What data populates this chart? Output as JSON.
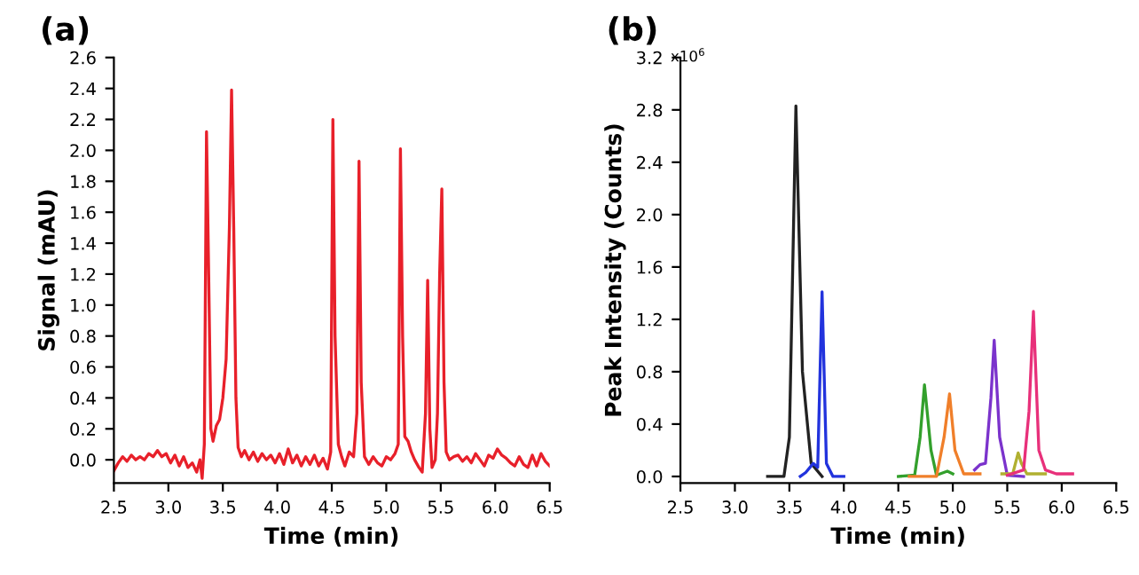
{
  "chart_data": [
    {
      "type": "line",
      "title": "(a)",
      "xlabel": "Time (min)",
      "ylabel": "Signal (mAU)",
      "xlim": [
        2.5,
        6.5
      ],
      "ylim": [
        -0.15,
        2.6
      ],
      "xticks": [
        2.5,
        {
          "value": 3,
          "label": "3.0"
        },
        3.5,
        {
          "value": 4,
          "label": "4.0"
        },
        4.5,
        {
          "value": 5,
          "label": "5.0"
        },
        5.5,
        {
          "value": 6,
          "label": "6.0"
        },
        6.5
      ],
      "yticks": [
        {
          "value": 0,
          "label": "0.0"
        },
        0.2,
        0.4,
        0.6,
        0.8,
        {
          "value": 1,
          "label": "1.0"
        },
        1.2,
        1.4,
        1.6,
        1.8,
        {
          "value": 2,
          "label": "2.0"
        },
        2.2,
        2.4,
        2.6
      ],
      "grid": false,
      "legend": false,
      "marker": "none",
      "line_style": "solid",
      "series": [
        {
          "color": "#e8202a",
          "x": [
            2.5,
            2.54,
            2.58,
            2.62,
            2.66,
            2.7,
            2.74,
            2.78,
            2.82,
            2.86,
            2.9,
            2.94,
            2.98,
            3.02,
            3.06,
            3.1,
            3.14,
            3.18,
            3.22,
            3.26,
            3.29,
            3.31,
            3.33,
            3.35,
            3.37,
            3.39,
            3.41,
            3.44,
            3.47,
            3.5,
            3.53,
            3.56,
            3.58,
            3.6,
            3.62,
            3.64,
            3.67,
            3.7,
            3.74,
            3.78,
            3.82,
            3.86,
            3.9,
            3.94,
            3.98,
            4.02,
            4.06,
            4.1,
            4.14,
            4.18,
            4.22,
            4.26,
            4.3,
            4.34,
            4.38,
            4.42,
            4.46,
            4.49,
            4.51,
            4.53,
            4.56,
            4.59,
            4.62,
            4.66,
            4.7,
            4.73,
            4.75,
            4.77,
            4.8,
            4.84,
            4.88,
            4.92,
            4.96,
            5.0,
            5.04,
            5.08,
            5.11,
            5.13,
            5.15,
            5.17,
            5.2,
            5.23,
            5.26,
            5.3,
            5.33,
            5.36,
            5.38,
            5.4,
            5.42,
            5.45,
            5.47,
            5.49,
            5.51,
            5.53,
            5.55,
            5.58,
            5.62,
            5.66,
            5.7,
            5.74,
            5.78,
            5.82,
            5.86,
            5.9,
            5.94,
            5.98,
            6.02,
            6.06,
            6.1,
            6.14,
            6.18,
            6.22,
            6.26,
            6.3,
            6.34,
            6.38,
            6.42,
            6.46,
            6.5
          ],
          "values": [
            -0.07,
            -0.02,
            0.02,
            -0.01,
            0.03,
            0.0,
            0.02,
            0.0,
            0.04,
            0.02,
            0.06,
            0.02,
            0.04,
            -0.02,
            0.03,
            -0.04,
            0.02,
            -0.05,
            -0.02,
            -0.08,
            0.0,
            -0.12,
            0.1,
            2.12,
            1.2,
            0.2,
            0.12,
            0.22,
            0.26,
            0.4,
            0.65,
            1.5,
            2.39,
            1.5,
            0.4,
            0.08,
            0.02,
            0.06,
            0.0,
            0.05,
            -0.01,
            0.04,
            0.0,
            0.03,
            -0.02,
            0.04,
            -0.03,
            0.07,
            -0.02,
            0.03,
            -0.04,
            0.02,
            -0.03,
            0.03,
            -0.04,
            0.01,
            -0.06,
            0.05,
            2.2,
            0.8,
            0.1,
            0.02,
            -0.04,
            0.05,
            0.02,
            0.3,
            1.93,
            0.5,
            0.02,
            -0.03,
            0.02,
            -0.02,
            -0.04,
            0.02,
            0.0,
            0.04,
            0.1,
            2.01,
            0.8,
            0.15,
            0.12,
            0.05,
            0.0,
            -0.05,
            -0.08,
            0.3,
            1.16,
            0.2,
            -0.05,
            0.0,
            0.3,
            1.2,
            1.75,
            0.5,
            0.05,
            0.0,
            0.02,
            0.03,
            -0.01,
            0.02,
            -0.02,
            0.04,
            0.0,
            -0.04,
            0.03,
            0.01,
            0.07,
            0.03,
            0.01,
            -0.02,
            -0.04,
            0.02,
            -0.03,
            -0.05,
            0.03,
            -0.04,
            0.04,
            -0.01,
            -0.04
          ]
        }
      ]
    },
    {
      "type": "line",
      "title": "(b)",
      "xlabel": "Time (min)",
      "ylabel": "Peak Intensity (Counts)",
      "annotations": [
        "x10$^{6}$"
      ],
      "xlim": [
        2.5,
        6.5
      ],
      "ylim": [
        -0.05,
        3.2
      ],
      "xticks": [
        2.5,
        {
          "value": 3,
          "label": "3.0"
        },
        3.5,
        {
          "value": 4,
          "label": "4.0"
        },
        4.5,
        {
          "value": 5,
          "label": "5.0"
        },
        5.5,
        {
          "value": 6,
          "label": "6.0"
        },
        6.5
      ],
      "yticks": [
        {
          "value": 0,
          "label": "0.0"
        },
        0.4,
        0.8,
        1.2,
        1.6,
        {
          "value": 2,
          "label": "2.0"
        },
        2.4,
        2.8,
        3.2
      ],
      "grid": false,
      "legend": false,
      "marker": "none",
      "line_style": "solid",
      "series": [
        {
          "color": "#222222",
          "x": [
            3.3,
            3.45,
            3.5,
            3.56,
            3.62,
            3.7,
            3.8
          ],
          "values": [
            0,
            0,
            0.3,
            2.83,
            0.8,
            0.1,
            0
          ]
        },
        {
          "color": "#2233dd",
          "x": [
            3.6,
            3.65,
            3.72,
            3.76,
            3.8,
            3.84,
            3.9,
            4.0
          ],
          "values": [
            0,
            0.03,
            0.1,
            0.07,
            1.41,
            0.1,
            0,
            0
          ]
        },
        {
          "color": "#33a02c",
          "x": [
            4.5,
            4.65,
            4.7,
            4.74,
            4.8,
            4.85,
            4.95,
            5.0
          ],
          "values": [
            0,
            0.01,
            0.3,
            0.7,
            0.2,
            0.01,
            0.04,
            0.02
          ]
        },
        {
          "color": "#f07f2a",
          "x": [
            4.6,
            4.85,
            4.92,
            4.97,
            5.02,
            5.1,
            5.25
          ],
          "values": [
            0,
            0,
            0.3,
            0.63,
            0.2,
            0.02,
            0.02
          ]
        },
        {
          "color": "#7b33cc",
          "x": [
            5.2,
            5.25,
            5.3,
            5.35,
            5.38,
            5.43,
            5.5,
            5.65
          ],
          "values": [
            0.05,
            0.09,
            0.1,
            0.6,
            1.04,
            0.3,
            0.01,
            0
          ]
        },
        {
          "color": "#b0b030",
          "x": [
            5.45,
            5.55,
            5.6,
            5.63,
            5.68,
            5.85
          ],
          "values": [
            0.02,
            0.02,
            0.18,
            0.1,
            0.02,
            0.02
          ]
        },
        {
          "color": "#e8307a",
          "x": [
            5.5,
            5.65,
            5.7,
            5.74,
            5.79,
            5.85,
            5.95,
            6.1
          ],
          "values": [
            0.01,
            0.05,
            0.5,
            1.26,
            0.2,
            0.05,
            0.02,
            0.02
          ]
        }
      ]
    }
  ]
}
